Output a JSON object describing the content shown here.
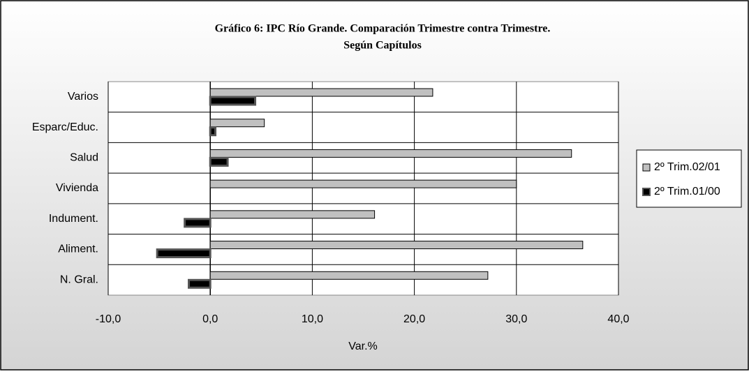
{
  "chart_data": {
    "type": "bar",
    "orientation": "horizontal",
    "title": [
      "Gráfico 6: IPC Río Grande. Comparación Trimestre contra Trimestre.",
      "Según Capítulos"
    ],
    "categories": [
      "Varios",
      "Esparc/Educ.",
      "Salud",
      "Vivienda",
      "Indument.",
      "Aliment.",
      "N. Gral."
    ],
    "series": [
      {
        "name": "2º Trim.02/01",
        "color": "#c0c0c0",
        "values": [
          21.8,
          5.3,
          35.4,
          30.0,
          16.1,
          36.5,
          27.2
        ]
      },
      {
        "name": "2º Trim.01/00",
        "color": "#000000",
        "values": [
          4.4,
          0.5,
          1.7,
          0,
          -2.5,
          -5.2,
          -2.1
        ]
      }
    ],
    "xlabel": "Var.%",
    "xlim": [
      -10,
      40
    ],
    "xticks": [
      {
        "value": -10,
        "label": "-10,0"
      },
      {
        "value": 0,
        "label": "0,0"
      },
      {
        "value": 10,
        "label": "10,0"
      },
      {
        "value": 20,
        "label": "20,0"
      },
      {
        "value": 30,
        "label": "30,0"
      },
      {
        "value": 40,
        "label": "40,0"
      }
    ],
    "grid": true,
    "legend": "right"
  }
}
